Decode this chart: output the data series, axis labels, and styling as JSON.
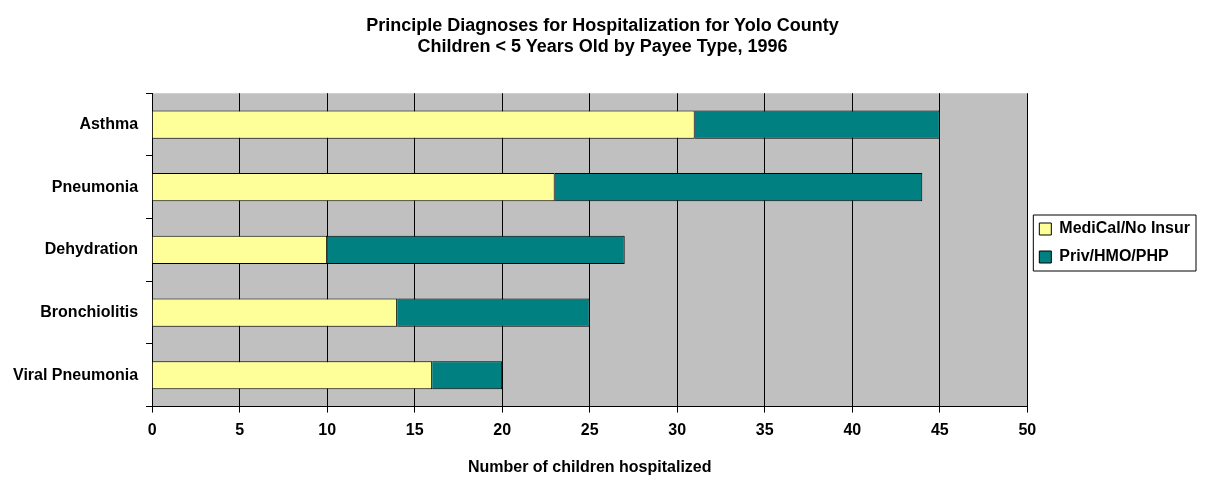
{
  "chart_data": {
    "type": "bar",
    "orientation": "horizontal",
    "stacked": true,
    "title": "Principle Diagnoses for Hospitalization for Yolo County\nChildren < 5 Years Old by Payee Type, 1996",
    "xlabel": "Number of children hospitalized",
    "categories": [
      "Asthma",
      "Pneumonia",
      "Dehydration",
      "Bronchiolitis",
      "Viral Pneumonia"
    ],
    "series": [
      {
        "name": "MediCal/No Insur",
        "color": "#ffff99",
        "values": [
          31,
          23,
          10,
          14,
          16
        ]
      },
      {
        "name": "Priv/HMO/PHP",
        "color": "#008080",
        "values": [
          14,
          21,
          17,
          11,
          4
        ]
      }
    ],
    "xlim": [
      0,
      50
    ],
    "xticks": [
      0,
      5,
      10,
      15,
      20,
      25,
      30,
      35,
      40,
      45,
      50
    ],
    "grid": "x",
    "legend": "right"
  }
}
